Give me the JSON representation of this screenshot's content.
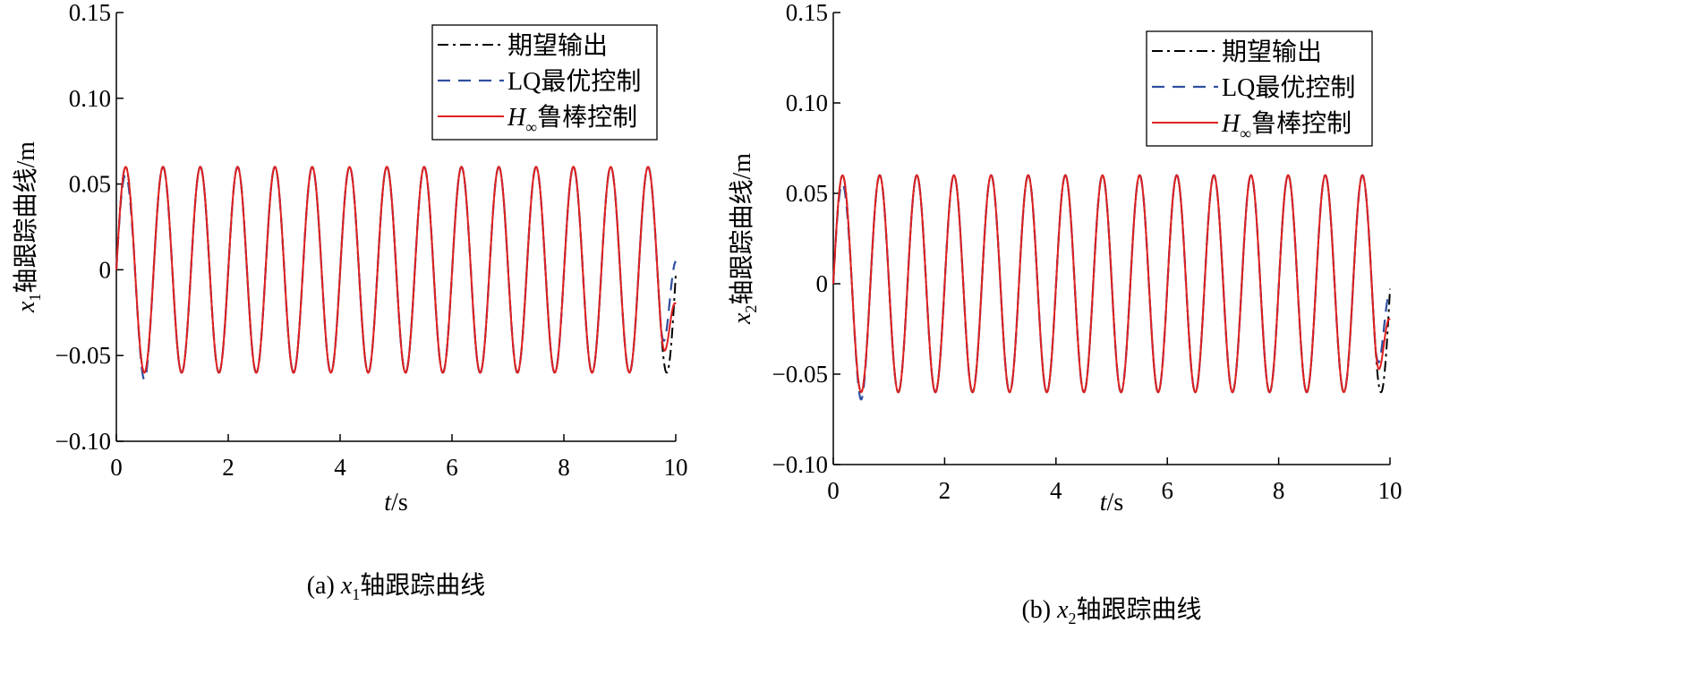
{
  "colors": {
    "desired": "#000000",
    "lq": "#2f4f9f",
    "hinf": "#e02020",
    "axis": "#000000",
    "background": "#ffffff"
  },
  "chart_data": [
    {
      "type": "line",
      "caption_prefix": "(a) ",
      "caption_var": "x",
      "caption_sub": "1",
      "caption_rest": "轴跟踪曲线",
      "xlabel_var": "t",
      "xlabel_unit": "/s",
      "ylabel_var": "x",
      "ylabel_sub": "1",
      "ylabel_rest": "轴跟踪曲线/m",
      "xlim": [
        0,
        10
      ],
      "ylim": [
        -0.1,
        0.15
      ],
      "xticks": [
        0,
        2,
        4,
        6,
        8,
        10
      ],
      "xtick_labels": [
        "0",
        "2",
        "4",
        "6",
        "8",
        "10"
      ],
      "yticks": [
        -0.1,
        -0.05,
        0,
        0.05,
        0.1,
        0.15
      ],
      "ytick_labels": [
        "−0.10",
        "−0.05",
        "0",
        "0.05",
        "0.10",
        "0.15"
      ],
      "grid": false,
      "legend_position": "top-right",
      "signal": {
        "amplitude": 0.06,
        "period": 0.667
      },
      "series": [
        {
          "name": "期望输出",
          "role": "desired",
          "style": "dash-dot",
          "formula": "0.06*sin(2*pi*t/0.667)"
        },
        {
          "name": "LQ最优控制",
          "role": "lq",
          "style": "dashed",
          "features": {
            "initial_peak": 0.055,
            "first_trough": -0.064,
            "end_value": 0.005
          }
        },
        {
          "name_prefix": "H",
          "name_sub": "∞",
          "name_rest": "鲁棒控制",
          "role": "hinf",
          "style": "solid",
          "features": {
            "initial_peak": 0.06,
            "first_trough": -0.06,
            "end_value": -0.02
          }
        }
      ]
    },
    {
      "type": "line",
      "caption_prefix": "(b) ",
      "caption_var": "x",
      "caption_sub": "2",
      "caption_rest": "轴跟踪曲线",
      "xlabel_var": "t",
      "xlabel_unit": "/s",
      "ylabel_var": "x",
      "ylabel_sub": "2",
      "ylabel_rest": "轴跟踪曲线/m",
      "xlim": [
        0,
        10
      ],
      "ylim": [
        -0.1,
        0.15
      ],
      "xticks": [
        0,
        2,
        4,
        6,
        8,
        10
      ],
      "xtick_labels": [
        "0",
        "2",
        "4",
        "6",
        "8",
        "10"
      ],
      "yticks": [
        -0.1,
        -0.05,
        0,
        0.05,
        0.1,
        0.15
      ],
      "ytick_labels": [
        "−0.10",
        "−0.05",
        "0",
        "0.05",
        "0.10",
        "0.15"
      ],
      "grid": false,
      "legend_position": "top-right",
      "signal": {
        "amplitude": 0.06,
        "period": 0.667
      },
      "series": [
        {
          "name": "期望输出",
          "role": "desired",
          "style": "dash-dot",
          "formula": "0.06*sin(2*pi*t/0.667)"
        },
        {
          "name": "LQ最优控制",
          "role": "lq",
          "style": "dashed",
          "features": {
            "initial_peak": 0.055,
            "first_trough": -0.064,
            "end_value": -0.005
          }
        },
        {
          "name_prefix": "H",
          "name_sub": "∞",
          "name_rest": "鲁棒控制",
          "role": "hinf",
          "style": "solid",
          "features": {
            "initial_peak": 0.06,
            "first_trough": -0.06,
            "end_value": -0.02
          }
        }
      ]
    }
  ]
}
